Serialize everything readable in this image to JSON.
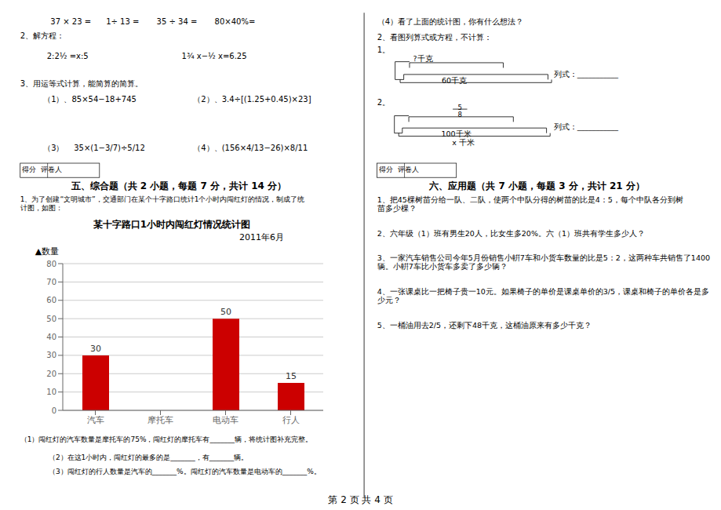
{
  "chart_data": {
    "type": "bar",
    "title": "某十字路口1小时内闯红灯情况统计图",
    "subtitle": "2011年6月",
    "ylabel": "▲数量",
    "categories": [
      "汽车",
      "摩托车",
      "电动车",
      "行人"
    ],
    "values": [
      30,
      0,
      50,
      15
    ],
    "value_labels": [
      "30",
      null,
      "50",
      "15"
    ],
    "data_labels": true,
    "color": "#cc0000",
    "ylim": [
      0,
      80
    ],
    "yticks": [
      0,
      10,
      20,
      30,
      40,
      50,
      60,
      70,
      80
    ],
    "grid": true,
    "annotations": [
      "37 × 23 =      1÷ 13 =       35 ÷ 34 =       80×40%=",
      "2、解方程：",
      "2:2½ =x:5",
      "1¾ x−½ x=6.25",
      "3、用运等式计算，能简算的简算。",
      "（1）、85×54−18+745",
      "（2）、3.4÷[(1.25+0.45)×23]",
      "（3）    35×(1−3/7)÷5/12",
      "（4）、(156×4/13−26)×8/11",
      "（4）看了上面的统计图，你有什么想法？",
      "2、看图列算式或方程，不计算：",
      "1。",
      "?千克",
      "60千克",
      "列式：___________",
      "2。",
      "5",
      "8",
      "100千米",
      "列式：___________",
      "x 千米",
      "得分  评卷人",
      "得分  评卷人",
      "五、综合题（共 2 小题，每题 7 分，共计 14 分）",
      "六、应用题（共 7 小题，每题 3 分，共计 21 分）",
      "1、为了创建“文明城市”，交通部门在某个十字路口统计1个小时内闯红灯的情况，制成了统",
      "计图，如图：",
      "1、把45棵树苗分给一队、二队，使两个中队分得的树苗的比是4：5，每个中队各分到树",
      "苗多少棵？",
      "2、六年级（1）班有男生20人，比女生多20%。六（1）班共有学生多少人？",
      "3、一家汽车销售公司今年5月份销售小輧7车和小货车数量的比是5：2，这两种车共销售了1400",
      "辆。小輧7车比小货车多卖了多少辆？",
      "4、一张课桌比一把椅子贵一10元。如果椅子的单价是课桌单价的3/5，课桌和椅子的单价各是多",
      "少元？",
      "5、一桶油用去2/5，还剩下48千克，这桶油原来有多少千克？",
      "（1）闯红灯的汽车数量是摩托车的75%，闯红灯的摩托车有_______辆，将统计图补充完整。",
      "   （2）在这1小时内，闯红灯的最多的是_______，有_______辆。",
      "   （3）闯红灯的行人数量是汽车的_______%。闯红灯的汽车数量是电动车的_______%。",
      "第 2 页 共 4 页"
    ]
  }
}
